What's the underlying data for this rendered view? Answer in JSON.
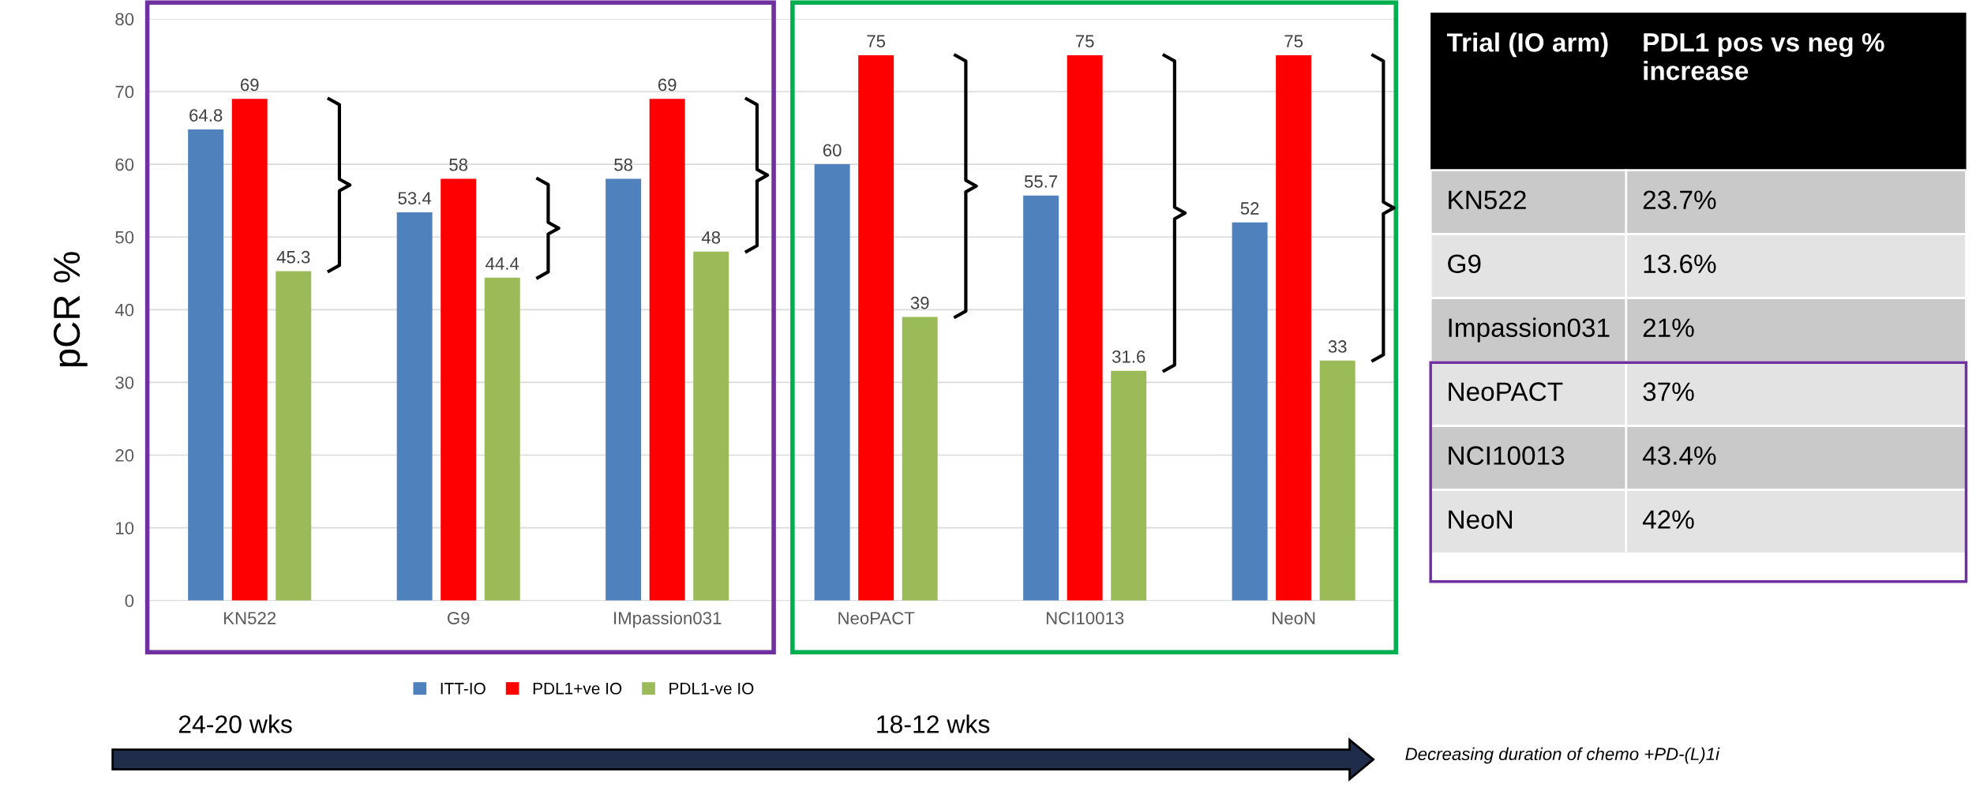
{
  "chart_data": [
    {
      "type": "bar",
      "ylabel": "pCR %",
      "categories": [
        "KN522",
        "G9",
        "IMpassion031",
        "NeoPACT",
        "NCI10013",
        "NeoN"
      ],
      "series": [
        {
          "name": "ITT-IO",
          "color": "#4f81bd",
          "values": [
            64.8,
            53.4,
            58,
            60,
            55.7,
            52
          ]
        },
        {
          "name": "PDL1+ve IO",
          "color": "#ff0000",
          "values": [
            69,
            58,
            69,
            75,
            75,
            75
          ]
        },
        {
          "name": "PDL1-ve IO",
          "color": "#9bbb59",
          "values": [
            45.3,
            44.4,
            48,
            39,
            31.6,
            33
          ]
        }
      ],
      "ylim": [
        0,
        80
      ],
      "yticks": [
        0,
        10,
        20,
        30,
        40,
        50,
        60,
        70,
        80
      ],
      "grid": "y",
      "legend": "bottom",
      "data_labels": true,
      "annotations": [
        "24-20 wks",
        "18-12 wks",
        "Decreasing duration of chemo +PD-(L)1i"
      ]
    },
    {
      "type": "other",
      "annotations": [
        "Trial (IO arm)",
        "PDL1 pos vs neg % increase"
      ],
      "categories": [
        "KN522",
        "G9",
        "Impassion031",
        "NeoPACT",
        "NCI10013",
        "NeoN"
      ],
      "value_labels": [
        "23.7%",
        "13.6%",
        "21%",
        "37%",
        "43.4%",
        "42%"
      ]
    }
  ]
}
